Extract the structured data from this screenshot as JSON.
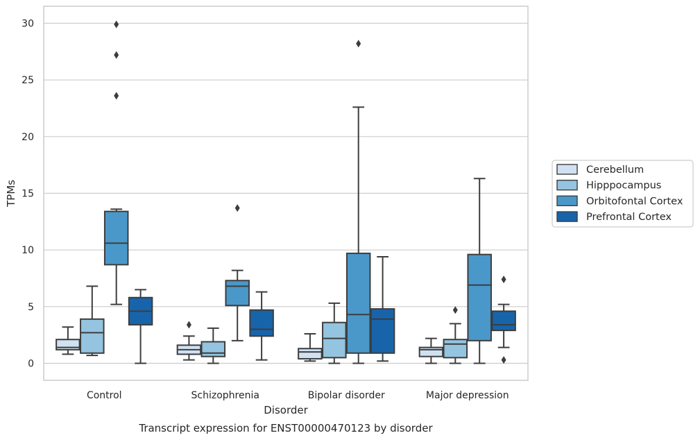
{
  "chart_data": {
    "type": "boxplot",
    "xlabel": "Disorder",
    "ylabel": "TPMs",
    "caption": "Transcript expression for ENST00000470123 by disorder",
    "ylim": [
      -1.5,
      31.5
    ],
    "yticks": [
      0,
      5,
      10,
      15,
      20,
      25,
      30
    ],
    "grid": "horizontal",
    "legend_position": "right",
    "categories": [
      "Control",
      "Schizophrenia",
      "Bipolar disorder",
      "Major depression"
    ],
    "series": [
      {
        "name": "Cerebellum",
        "color": "#d0e1f2",
        "boxes": [
          {
            "whislo": 0.8,
            "q1": 1.2,
            "med": 1.4,
            "q3": 2.1,
            "whishi": 3.2,
            "fliers": []
          },
          {
            "whislo": 0.3,
            "q1": 0.8,
            "med": 1.2,
            "q3": 1.6,
            "whishi": 2.4,
            "fliers": [
              3.4
            ]
          },
          {
            "whislo": 0.2,
            "q1": 0.4,
            "med": 1.0,
            "q3": 1.3,
            "whishi": 2.6,
            "fliers": []
          },
          {
            "whislo": 0.0,
            "q1": 0.6,
            "med": 1.2,
            "q3": 1.4,
            "whishi": 2.2,
            "fliers": []
          }
        ]
      },
      {
        "name": "Hipppocampus",
        "color": "#94c4df",
        "boxes": [
          {
            "whislo": 0.7,
            "q1": 0.9,
            "med": 2.7,
            "q3": 3.9,
            "whishi": 6.8,
            "fliers": []
          },
          {
            "whislo": 0.0,
            "q1": 0.6,
            "med": 0.9,
            "q3": 1.9,
            "whishi": 3.1,
            "fliers": []
          },
          {
            "whislo": 0.0,
            "q1": 0.5,
            "med": 2.2,
            "q3": 3.6,
            "whishi": 5.3,
            "fliers": []
          },
          {
            "whislo": 0.0,
            "q1": 0.5,
            "med": 1.7,
            "q3": 2.1,
            "whishi": 3.5,
            "fliers": [
              4.7
            ]
          }
        ]
      },
      {
        "name": "Orbitofontal Cortex",
        "color": "#4a98c9",
        "boxes": [
          {
            "whislo": 5.2,
            "q1": 8.7,
            "med": 10.6,
            "q3": 13.4,
            "whishi": 13.6,
            "fliers": [
              23.6,
              27.2,
              29.9
            ]
          },
          {
            "whislo": 2.0,
            "q1": 5.1,
            "med": 6.8,
            "q3": 7.3,
            "whishi": 8.2,
            "fliers": [
              13.7
            ]
          },
          {
            "whislo": 0.0,
            "q1": 0.9,
            "med": 4.3,
            "q3": 9.7,
            "whishi": 22.6,
            "fliers": [
              28.2
            ]
          },
          {
            "whislo": 0.0,
            "q1": 2.0,
            "med": 6.9,
            "q3": 9.6,
            "whishi": 16.3,
            "fliers": []
          }
        ]
      },
      {
        "name": "Prefrontal Cortex",
        "color": "#1764ab",
        "boxes": [
          {
            "whislo": 0.0,
            "q1": 3.4,
            "med": 4.6,
            "q3": 5.8,
            "whishi": 6.5,
            "fliers": []
          },
          {
            "whislo": 0.3,
            "q1": 2.4,
            "med": 3.0,
            "q3": 4.7,
            "whishi": 6.3,
            "fliers": []
          },
          {
            "whislo": 0.2,
            "q1": 0.9,
            "med": 3.9,
            "q3": 4.8,
            "whishi": 9.4,
            "fliers": []
          },
          {
            "whislo": 1.4,
            "q1": 2.9,
            "med": 3.4,
            "q3": 4.6,
            "whishi": 5.2,
            "fliers": [
              0.3,
              7.4
            ]
          }
        ]
      }
    ]
  }
}
